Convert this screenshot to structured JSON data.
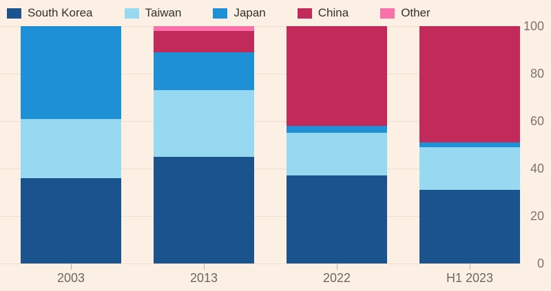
{
  "app": {
    "background_color": "#FCF0E4",
    "gridline_color": "#EFDECB",
    "axis_label_color": "#7E7467",
    "category_label_color": "#6E675E",
    "legend_text_color": "#33312C"
  },
  "chart_data": {
    "type": "bar",
    "stacked": true,
    "orientation": "vertical",
    "title": "",
    "xlabel": "",
    "ylabel": "",
    "categories": [
      "2003",
      "2013",
      "2022",
      "H1 2023"
    ],
    "series": [
      {
        "name": "South Korea",
        "color": "#1A538E",
        "values": [
          36,
          45,
          37,
          31
        ]
      },
      {
        "name": "Taiwan",
        "color": "#96D9F1",
        "values": [
          25,
          28,
          18,
          18
        ]
      },
      {
        "name": "Japan",
        "color": "#1E90D6",
        "values": [
          39,
          16,
          3,
          2
        ]
      },
      {
        "name": "China",
        "color": "#C22A59",
        "values": [
          0,
          9,
          42,
          49
        ]
      },
      {
        "name": "Other",
        "color": "#F971A8",
        "values": [
          0,
          2,
          0,
          0
        ]
      }
    ],
    "ylim": [
      0,
      100
    ],
    "y_ticks": [
      0,
      20,
      40,
      60,
      80,
      100
    ],
    "y_tick_labels": [
      "0",
      "20",
      "40",
      "60",
      "80",
      "100"
    ],
    "y_axis_side": "right",
    "grid": true,
    "legend_position": "top-left",
    "legend_entries": [
      "South Korea",
      "Taiwan",
      "Japan",
      "China",
      "Other"
    ]
  }
}
